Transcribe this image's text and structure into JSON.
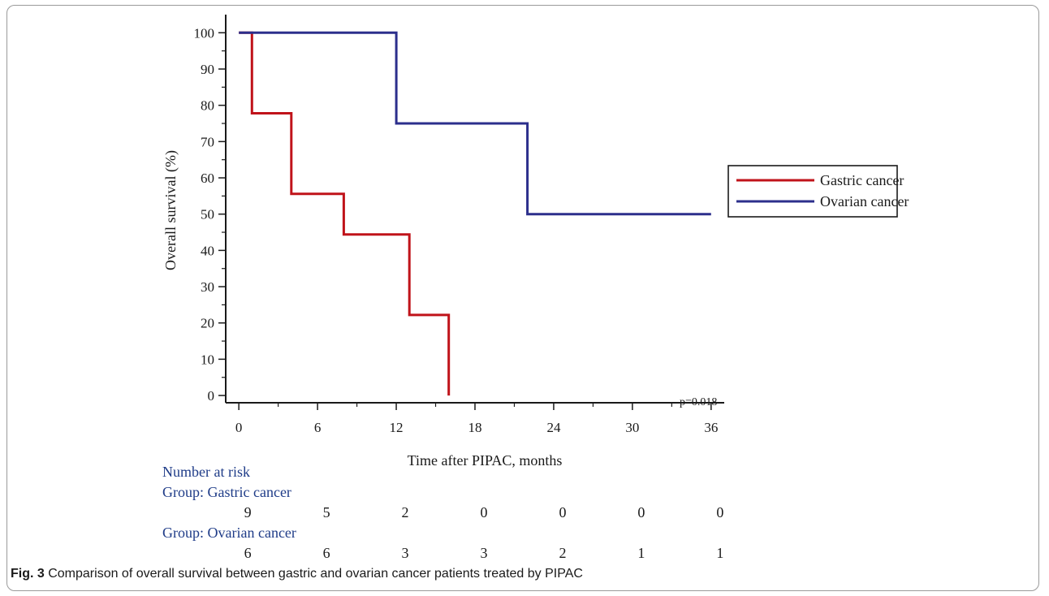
{
  "chart_data": {
    "type": "line",
    "subtype": "kaplan-meier step",
    "xlabel": "Time after PIPAC, months",
    "ylabel": "Overall survival (%)",
    "x_ticks": [
      0,
      6,
      12,
      18,
      24,
      30,
      36
    ],
    "y_ticks": [
      0,
      10,
      20,
      30,
      40,
      50,
      60,
      70,
      80,
      90,
      100
    ],
    "xlim": [
      -1,
      37
    ],
    "ylim": [
      -2,
      105
    ],
    "legend_position": "right",
    "annotation": "p=0.018",
    "series": [
      {
        "name": "Gastric cancer",
        "color": "#c0131a",
        "x": [
          0,
          1,
          1,
          4,
          4,
          8,
          8,
          13,
          13,
          16,
          16
        ],
        "y": [
          100,
          100,
          77.8,
          77.8,
          55.6,
          55.6,
          44.4,
          44.4,
          22.2,
          22.2,
          0
        ]
      },
      {
        "name": "Ovarian cancer",
        "color": "#2c2f8c",
        "x": [
          0,
          12,
          12,
          22,
          22,
          36
        ],
        "y": [
          100,
          100,
          75,
          75,
          50,
          50
        ]
      }
    ],
    "risk_table": {
      "title": "Number at risk",
      "title_color": "#1f3c88",
      "groups": [
        {
          "label": "Group: Gastric cancer",
          "counts": [
            "9",
            "5",
            "2",
            "0",
            "0",
            "0",
            "0"
          ]
        },
        {
          "label": "Group: Ovarian cancer",
          "counts": [
            "6",
            "6",
            "3",
            "3",
            "2",
            "1",
            "1"
          ]
        }
      ]
    }
  },
  "caption": {
    "label": "Fig. 3",
    "text": " Comparison of overall survival between gastric and ovarian cancer patients treated by PIPAC"
  }
}
